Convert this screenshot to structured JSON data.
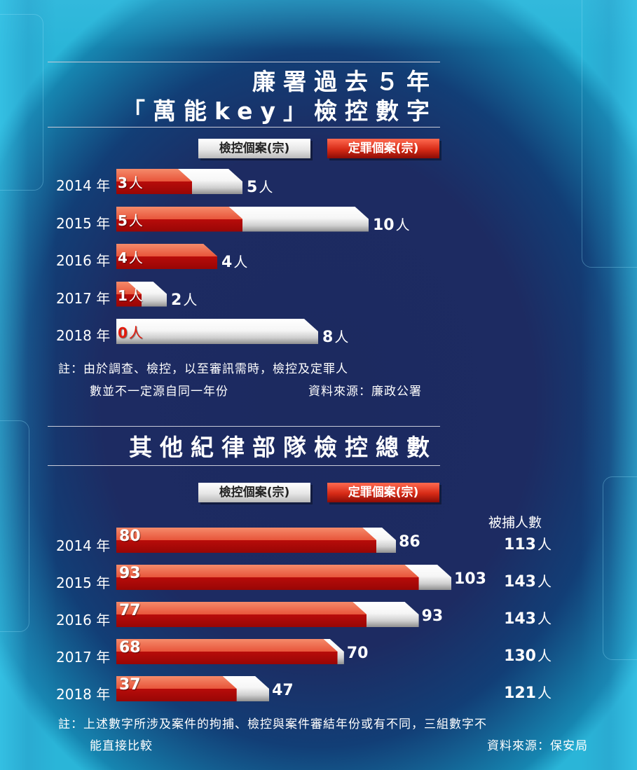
{
  "section1": {
    "title_line1": "廉署過去５年",
    "title_line2": "「萬能key」檢控數字",
    "legend_total": "檢控個案(宗)",
    "legend_convicted": "定罪個案(宗)",
    "note_line1": "註：由於調查、檢控，以至審訊需時，檢控及定罪人",
    "note_line2": "數並不一定源自同一年份",
    "source": "資料來源：廉政公署"
  },
  "section2": {
    "title": "其他紀律部隊檢控總數",
    "legend_total": "檢控個案(宗)",
    "legend_convicted": "定罪個案(宗)",
    "arrest_header": "被捕人數",
    "note_line1": "註：上述數字所涉及案件的拘捕、檢控與案件審結年份或有不同，三組數字不",
    "note_line2": "能直接比較",
    "source": "資料來源：保安局"
  },
  "colors": {
    "total_bar": "#ffffff",
    "convicted_bar": "#e8553a",
    "background": "#1d2b62"
  },
  "chart_data": [
    {
      "type": "bar",
      "orientation": "horizontal",
      "title": "廉署過去５年「萬能key」檢控數字",
      "categories": [
        "2014 年",
        "2015 年",
        "2016 年",
        "2017 年",
        "2018 年"
      ],
      "series": [
        {
          "name": "檢控個案(宗)",
          "values": [
            5,
            10,
            4,
            2,
            8
          ],
          "labels": [
            "5",
            "10",
            "4",
            "2",
            "8"
          ],
          "unit": "人"
        },
        {
          "name": "定罪個案(宗)",
          "values": [
            3,
            5,
            4,
            1,
            0
          ],
          "labels": [
            "3",
            "5",
            "4",
            "1",
            "0"
          ],
          "unit": "人"
        }
      ],
      "xlim": [
        0,
        10
      ]
    },
    {
      "type": "bar",
      "orientation": "horizontal",
      "title": "其他紀律部隊檢控總數",
      "categories": [
        "2014 年",
        "2015 年",
        "2016 年",
        "2017 年",
        "2018 年"
      ],
      "series": [
        {
          "name": "檢控個案(宗)",
          "values": [
            86,
            103,
            93,
            70,
            47
          ],
          "labels": [
            "86",
            "103",
            "93",
            "70",
            "47"
          ]
        },
        {
          "name": "定罪個案(宗)",
          "values": [
            80,
            93,
            77,
            68,
            37
          ],
          "labels": [
            "80",
            "93",
            "77",
            "68",
            "37"
          ]
        },
        {
          "name": "被捕人數",
          "values": [
            113,
            143,
            143,
            130,
            121
          ],
          "labels": [
            "113",
            "143",
            "143",
            "130",
            "121"
          ],
          "unit": "人"
        }
      ],
      "xlim": [
        0,
        103
      ]
    }
  ]
}
